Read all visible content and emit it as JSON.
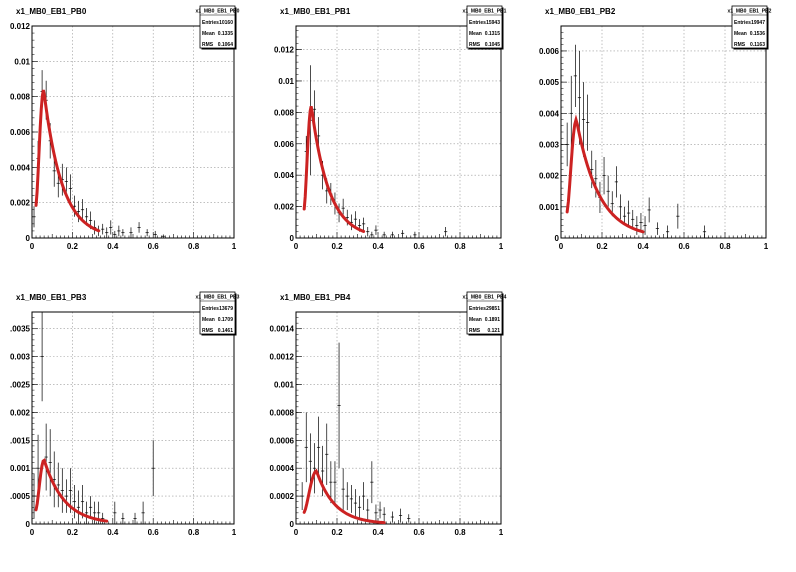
{
  "chart_data": [
    {
      "type": "histogram",
      "title": "x1_MB0_EB1_PB0",
      "xlim": [
        0,
        1
      ],
      "ylim": [
        0,
        0.012
      ],
      "xticks": [
        "0",
        "0.2",
        "0.4",
        "0.6",
        "0.8",
        "1"
      ],
      "yticks": [
        "0",
        "0.002",
        "0.004",
        "0.006",
        "0.008",
        "0.01",
        "0.012"
      ],
      "yticks_values": [
        0,
        0.002,
        0.004,
        0.006,
        0.008,
        0.01,
        0.012
      ],
      "grid": true,
      "stats": {
        "name": "x1_MB0_EB1_PB0",
        "rows": [
          [
            "Entries",
            "10160"
          ],
          [
            "Mean",
            "0.1335"
          ],
          [
            "RMS",
            "0.1064"
          ]
        ]
      },
      "points": [
        [
          0.01,
          0.0012,
          0.0006
        ],
        [
          0.03,
          0.0045,
          0.001
        ],
        [
          0.05,
          0.0083,
          0.0012
        ],
        [
          0.07,
          0.0078,
          0.0011
        ],
        [
          0.09,
          0.0055,
          0.001
        ],
        [
          0.11,
          0.0038,
          0.0009
        ],
        [
          0.13,
          0.0031,
          0.0008
        ],
        [
          0.15,
          0.0033,
          0.0009
        ],
        [
          0.17,
          0.0032,
          0.0008
        ],
        [
          0.19,
          0.0028,
          0.0008
        ],
        [
          0.21,
          0.0018,
          0.0006
        ],
        [
          0.23,
          0.0015,
          0.0006
        ],
        [
          0.25,
          0.0016,
          0.0006
        ],
        [
          0.27,
          0.0012,
          0.0005
        ],
        [
          0.29,
          0.001,
          0.0005
        ],
        [
          0.31,
          0.0006,
          0.0004
        ],
        [
          0.33,
          0.0004,
          0.0003
        ],
        [
          0.35,
          0.0005,
          0.0003
        ],
        [
          0.37,
          0.0003,
          0.0003
        ],
        [
          0.39,
          0.0006,
          0.0004
        ],
        [
          0.41,
          0.0002,
          0.0002
        ],
        [
          0.43,
          0.0004,
          0.0003
        ],
        [
          0.45,
          0.0003,
          0.0002
        ],
        [
          0.49,
          0.0003,
          0.0003
        ],
        [
          0.53,
          0.0006,
          0.0003
        ],
        [
          0.57,
          0.0003,
          0.0002
        ],
        [
          0.61,
          0.0002,
          0.0002
        ],
        [
          0.65,
          0.0001,
          0.0001
        ]
      ],
      "fit": {
        "x0": 0.02,
        "x1": 0.33,
        "peak": 0.0084,
        "mu": 0.058,
        "lam": 0.09
      },
      "fit_color": "#cc2222"
    },
    {
      "type": "histogram",
      "title": "x1_MB0_EB1_PB1",
      "xlim": [
        0,
        1
      ],
      "ylim": [
        0,
        0.0135
      ],
      "xticks": [
        "0",
        "0.2",
        "0.4",
        "0.6",
        "0.8",
        "1"
      ],
      "yticks": [
        "0",
        "0.002",
        "0.004",
        "0.006",
        "0.008",
        "0.01",
        "0.012"
      ],
      "yticks_values": [
        0,
        0.002,
        0.004,
        0.006,
        0.008,
        0.01,
        0.012
      ],
      "grid": true,
      "stats": {
        "name": "x1_MB0_EB1_PB1",
        "rows": [
          [
            "Entries",
            "15943"
          ],
          [
            "Mean",
            "0.1315"
          ],
          [
            "RMS",
            "0.1045"
          ]
        ]
      },
      "points": [
        [
          0.05,
          0.0055,
          0.001
        ],
        [
          0.07,
          0.0075,
          0.0035
        ],
        [
          0.09,
          0.0082,
          0.0012
        ],
        [
          0.11,
          0.0065,
          0.0012
        ],
        [
          0.13,
          0.004,
          0.0009
        ],
        [
          0.15,
          0.003,
          0.0008
        ],
        [
          0.17,
          0.0028,
          0.0007
        ],
        [
          0.19,
          0.0022,
          0.0007
        ],
        [
          0.21,
          0.0016,
          0.0006
        ],
        [
          0.23,
          0.0019,
          0.0006
        ],
        [
          0.25,
          0.0013,
          0.0005
        ],
        [
          0.27,
          0.001,
          0.0005
        ],
        [
          0.29,
          0.0012,
          0.0005
        ],
        [
          0.31,
          0.0008,
          0.0004
        ],
        [
          0.33,
          0.0009,
          0.0004
        ],
        [
          0.35,
          0.0004,
          0.0003
        ],
        [
          0.37,
          0.0002,
          0.0002
        ],
        [
          0.39,
          0.0005,
          0.0003
        ],
        [
          0.43,
          0.0002,
          0.0002
        ],
        [
          0.47,
          0.0002,
          0.0002
        ],
        [
          0.52,
          0.0003,
          0.0002
        ],
        [
          0.58,
          0.0002,
          0.0002
        ],
        [
          0.73,
          0.0004,
          0.0003
        ]
      ],
      "fit": {
        "x0": 0.04,
        "x1": 0.33,
        "peak": 0.0084,
        "mu": 0.075,
        "lam": 0.085
      },
      "fit_color": "#cc2222"
    },
    {
      "type": "histogram",
      "title": "x1_MB0_EB1_PB2",
      "xlim": [
        0,
        1
      ],
      "ylim": [
        0,
        0.0068
      ],
      "xticks": [
        "0",
        "0.2",
        "0.4",
        "0.6",
        "0.8",
        "1"
      ],
      "yticks": [
        "0",
        "0.001",
        "0.002",
        "0.003",
        "0.004",
        "0.005",
        "0.006"
      ],
      "yticks_values": [
        0,
        0.001,
        0.002,
        0.003,
        0.004,
        0.005,
        0.006
      ],
      "grid": true,
      "stats": {
        "name": "x1_MB0_EB1_PB2",
        "rows": [
          [
            "Entries",
            "19947"
          ],
          [
            "Mean",
            "0.1536"
          ],
          [
            "RMS",
            "0.1163"
          ]
        ]
      },
      "points": [
        [
          0.03,
          0.003,
          0.0007
        ],
        [
          0.05,
          0.004,
          0.0012
        ],
        [
          0.07,
          0.0052,
          0.001
        ],
        [
          0.09,
          0.0045,
          0.0015
        ],
        [
          0.11,
          0.0038,
          0.0012
        ],
        [
          0.13,
          0.0037,
          0.0009
        ],
        [
          0.15,
          0.0022,
          0.0006
        ],
        [
          0.17,
          0.0019,
          0.0006
        ],
        [
          0.19,
          0.0013,
          0.0005
        ],
        [
          0.21,
          0.002,
          0.0006
        ],
        [
          0.23,
          0.0015,
          0.0005
        ],
        [
          0.25,
          0.0011,
          0.0004
        ],
        [
          0.27,
          0.0018,
          0.0005
        ],
        [
          0.29,
          0.001,
          0.0004
        ],
        [
          0.31,
          0.0007,
          0.0003
        ],
        [
          0.33,
          0.0008,
          0.0004
        ],
        [
          0.35,
          0.0006,
          0.0003
        ],
        [
          0.37,
          0.0004,
          0.0003
        ],
        [
          0.39,
          0.0005,
          0.0003
        ],
        [
          0.41,
          0.0004,
          0.0003
        ],
        [
          0.43,
          0.0009,
          0.0004
        ],
        [
          0.47,
          0.0003,
          0.0002
        ],
        [
          0.52,
          0.0002,
          0.0002
        ],
        [
          0.57,
          0.0007,
          0.0004
        ],
        [
          0.7,
          0.0002,
          0.0002
        ]
      ],
      "fit": {
        "x0": 0.03,
        "x1": 0.4,
        "peak": 0.0038,
        "mu": 0.075,
        "lam": 0.11
      },
      "fit_color": "#cc2222"
    },
    {
      "type": "histogram",
      "title": "x1_MB0_EB1_PB3",
      "xlim": [
        0,
        1
      ],
      "ylim": [
        0,
        0.0038
      ],
      "xticks": [
        "0",
        "0.2",
        "0.4",
        "0.6",
        "0.8",
        "1"
      ],
      "yticks": [
        "0",
        ".0005",
        "0.001",
        ".0015",
        "0.002",
        ".0025",
        "0.003",
        ".0035"
      ],
      "yticks_values": [
        0,
        0.0005,
        0.001,
        0.0015,
        0.002,
        0.0025,
        0.003,
        0.0035
      ],
      "grid": true,
      "stats": {
        "name": "x1_MB0_EB1_PB3",
        "rows": [
          [
            "Entries",
            "13679"
          ],
          [
            "Mean",
            "0.1709"
          ],
          [
            "RMS",
            "0.1461"
          ]
        ]
      },
      "points": [
        [
          0.01,
          0.0005,
          0.0004
        ],
        [
          0.03,
          0.001,
          0.0006
        ],
        [
          0.05,
          0.003,
          0.0008
        ],
        [
          0.07,
          0.0012,
          0.0006
        ],
        [
          0.09,
          0.0011,
          0.0006
        ],
        [
          0.11,
          0.0008,
          0.0005
        ],
        [
          0.13,
          0.0007,
          0.0004
        ],
        [
          0.15,
          0.0006,
          0.0004
        ],
        [
          0.17,
          0.0005,
          0.0003
        ],
        [
          0.19,
          0.0006,
          0.0004
        ],
        [
          0.21,
          0.0004,
          0.0003
        ],
        [
          0.23,
          0.0003,
          0.0003
        ],
        [
          0.25,
          0.0004,
          0.0003
        ],
        [
          0.27,
          0.0002,
          0.0002
        ],
        [
          0.29,
          0.0003,
          0.0002
        ],
        [
          0.31,
          0.0002,
          0.0002
        ],
        [
          0.33,
          0.0002,
          0.0002
        ],
        [
          0.35,
          0.0001,
          0.0001
        ],
        [
          0.41,
          0.0002,
          0.0002
        ],
        [
          0.45,
          0.0001,
          0.0001
        ],
        [
          0.51,
          0.0001,
          0.0001
        ],
        [
          0.55,
          0.0002,
          0.0002
        ],
        [
          0.6,
          0.001,
          0.0005
        ]
      ],
      "fit": {
        "x0": 0.02,
        "x1": 0.37,
        "peak": 0.00115,
        "mu": 0.06,
        "lam": 0.1
      },
      "fit_color": "#cc2222"
    },
    {
      "type": "histogram",
      "title": "x1_MB0_EB1_PB4",
      "xlim": [
        0,
        1
      ],
      "ylim": [
        0,
        0.00152
      ],
      "xticks": [
        "0",
        "0.2",
        "0.4",
        "0.6",
        "0.8",
        "1"
      ],
      "yticks": [
        "0",
        "0.0002",
        "0.0004",
        "0.0006",
        "0.0008",
        "0.001",
        "0.0012",
        "0.0014"
      ],
      "yticks_values": [
        0,
        0.0002,
        0.0004,
        0.0006,
        0.0008,
        0.001,
        0.0012,
        0.0014
      ],
      "grid": true,
      "stats": {
        "name": "x1_MB0_EB1_PB4",
        "rows": [
          [
            "Entries",
            "29851"
          ],
          [
            "Mean",
            "0.1891"
          ],
          [
            "RMS",
            "0.121"
          ]
        ]
      },
      "points": [
        [
          0.03,
          0.0002,
          0.0001
        ],
        [
          0.05,
          0.00055,
          0.00025
        ],
        [
          0.07,
          0.00045,
          0.0002
        ],
        [
          0.09,
          0.0004,
          0.00018
        ],
        [
          0.11,
          0.00055,
          0.00022
        ],
        [
          0.13,
          0.00038,
          0.00018
        ],
        [
          0.15,
          0.0005,
          0.00022
        ],
        [
          0.17,
          0.0003,
          0.00015
        ],
        [
          0.19,
          0.0003,
          0.00015
        ],
        [
          0.21,
          0.00085,
          0.00045
        ],
        [
          0.23,
          0.00025,
          0.00015
        ],
        [
          0.25,
          0.0002,
          0.0001
        ],
        [
          0.27,
          0.00018,
          0.0001
        ],
        [
          0.29,
          0.00015,
          0.0001
        ],
        [
          0.31,
          0.00012,
          8e-05
        ],
        [
          0.33,
          0.0002,
          0.0001
        ],
        [
          0.35,
          0.0001,
          8e-05
        ],
        [
          0.37,
          0.0003,
          0.00015
        ],
        [
          0.39,
          8e-05,
          6e-05
        ],
        [
          0.41,
          0.0001,
          6e-05
        ],
        [
          0.43,
          7e-05,
          5e-05
        ],
        [
          0.47,
          5e-05,
          4e-05
        ],
        [
          0.51,
          6e-05,
          5e-05
        ],
        [
          0.55,
          4e-05,
          3e-05
        ]
      ],
      "fit": {
        "x0": 0.04,
        "x1": 0.43,
        "peak": 0.00038,
        "mu": 0.1,
        "lam": 0.09
      },
      "fit_color": "#cc2222"
    }
  ]
}
